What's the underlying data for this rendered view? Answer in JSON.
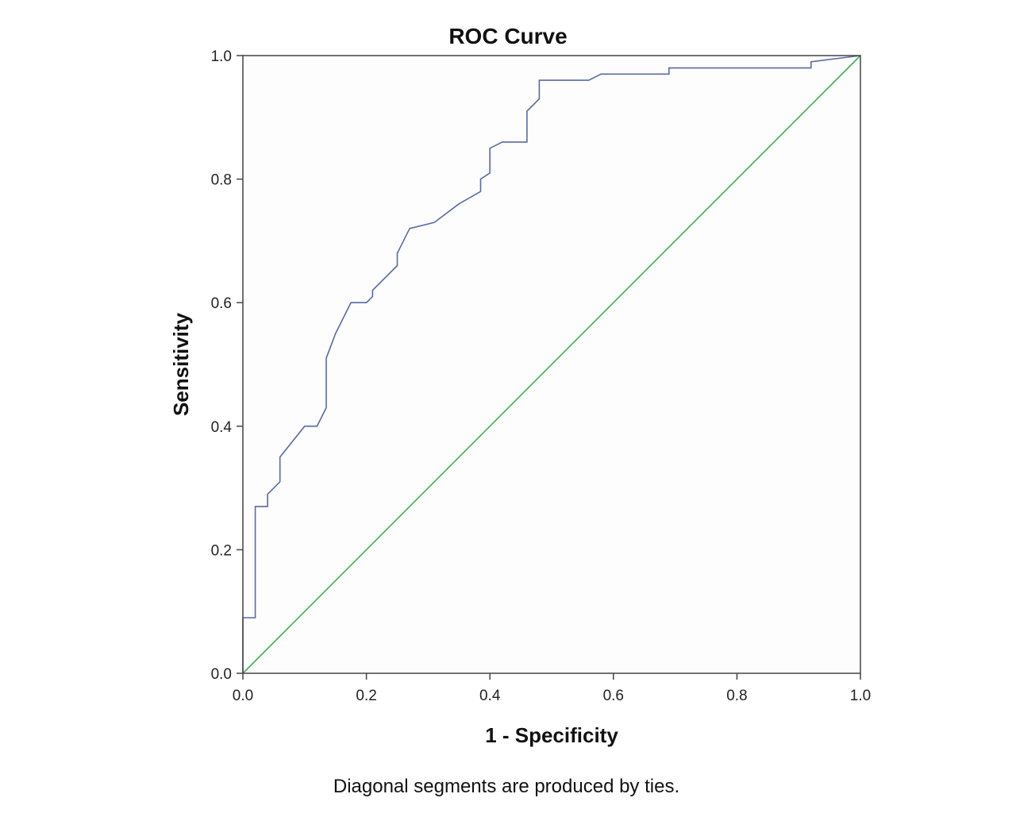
{
  "chart_data": {
    "type": "line",
    "title": "ROC Curve",
    "xlabel": "1 - Specificity",
    "ylabel": "Sensitivity",
    "xlim": [
      0,
      1
    ],
    "ylim": [
      0,
      1
    ],
    "xticks": [
      "0.0",
      "0.2",
      "0.4",
      "0.6",
      "0.8",
      "1.0"
    ],
    "yticks": [
      "0.0",
      "0.2",
      "0.4",
      "0.6",
      "0.8",
      "1.0"
    ],
    "grid": false,
    "footnote": "Diagonal segments are produced by ties.",
    "series": [
      {
        "color": "#5a6aa8",
        "x": [
          0,
          0,
          0.02,
          0.02,
          0.04,
          0.04,
          0.06,
          0.06,
          0.1,
          0.12,
          0.135,
          0.135,
          0.15,
          0.175,
          0.2,
          0.21,
          0.21,
          0.25,
          0.25,
          0.27,
          0.31,
          0.35,
          0.385,
          0.385,
          0.4,
          0.4,
          0.42,
          0.46,
          0.46,
          0.48,
          0.48,
          0.56,
          0.58,
          0.69,
          0.69,
          0.92,
          0.92,
          1
        ],
        "y": [
          0,
          0.09,
          0.09,
          0.27,
          0.27,
          0.29,
          0.31,
          0.35,
          0.4,
          0.4,
          0.43,
          0.51,
          0.55,
          0.6,
          0.6,
          0.61,
          0.62,
          0.66,
          0.68,
          0.72,
          0.73,
          0.76,
          0.78,
          0.8,
          0.81,
          0.85,
          0.86,
          0.86,
          0.91,
          0.93,
          0.96,
          0.96,
          0.97,
          0.97,
          0.98,
          0.98,
          0.99,
          1
        ]
      },
      {
        "color": "#3cb44b",
        "x": [
          0,
          1
        ],
        "y": [
          0,
          1
        ]
      }
    ]
  }
}
